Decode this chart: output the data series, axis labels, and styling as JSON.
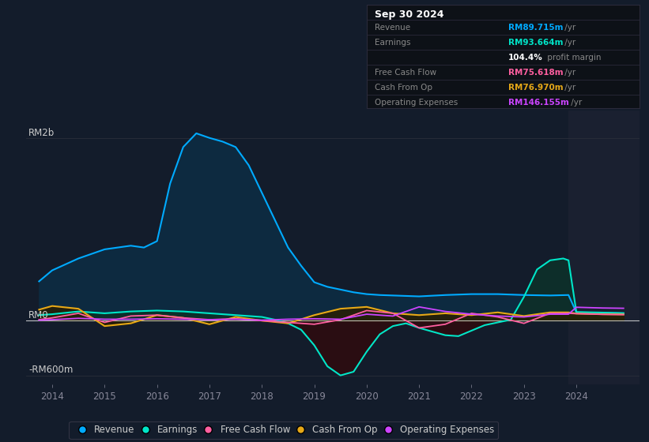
{
  "bg_color": "#131c2b",
  "plot_bg_color": "#131c2b",
  "info_box_bg": "#0d1117",
  "info_box_border": "#2a2a3a",
  "x_ticks": [
    2014,
    2015,
    2016,
    2017,
    2018,
    2019,
    2020,
    2021,
    2022,
    2023,
    2024
  ],
  "ylim": [
    -700,
    2300
  ],
  "xlim": [
    2013.5,
    2025.2
  ],
  "shaded_right_x": 2023.85,
  "revenue_x": [
    2013.75,
    2014.0,
    2014.5,
    2015.0,
    2015.5,
    2015.75,
    2016.0,
    2016.25,
    2016.5,
    2016.75,
    2017.0,
    2017.25,
    2017.5,
    2017.75,
    2018.0,
    2018.25,
    2018.5,
    2018.75,
    2019.0,
    2019.25,
    2019.5,
    2019.75,
    2020.0,
    2020.25,
    2020.5,
    2020.75,
    2021.0,
    2021.5,
    2022.0,
    2022.5,
    2023.0,
    2023.5,
    2023.85,
    2024.0,
    2024.5,
    2024.9
  ],
  "revenue_y": [
    430,
    550,
    680,
    780,
    820,
    800,
    870,
    1500,
    1900,
    2050,
    2000,
    1960,
    1900,
    1700,
    1400,
    1100,
    800,
    600,
    420,
    370,
    340,
    310,
    290,
    280,
    275,
    270,
    265,
    280,
    290,
    290,
    280,
    275,
    280,
    90,
    85,
    80
  ],
  "earnings_x": [
    2013.75,
    2014.0,
    2014.5,
    2015.0,
    2015.5,
    2016.0,
    2016.5,
    2017.0,
    2017.5,
    2018.0,
    2018.25,
    2018.5,
    2018.75,
    2019.0,
    2019.25,
    2019.5,
    2019.75,
    2020.0,
    2020.25,
    2020.5,
    2020.75,
    2021.0,
    2021.25,
    2021.5,
    2021.75,
    2022.0,
    2022.25,
    2022.5,
    2022.75,
    2023.0,
    2023.25,
    2023.5,
    2023.75,
    2023.85,
    2024.0,
    2024.5,
    2024.9
  ],
  "earnings_y": [
    60,
    70,
    100,
    80,
    100,
    110,
    100,
    80,
    60,
    40,
    10,
    -30,
    -100,
    -270,
    -500,
    -600,
    -560,
    -340,
    -150,
    -60,
    -30,
    -80,
    -120,
    -160,
    -170,
    -110,
    -50,
    -20,
    10,
    260,
    560,
    660,
    680,
    660,
    94,
    88,
    82
  ],
  "fcf_x": [
    2013.75,
    2014.0,
    2014.5,
    2015.0,
    2015.5,
    2016.0,
    2016.5,
    2017.0,
    2017.5,
    2018.0,
    2018.5,
    2019.0,
    2019.5,
    2020.0,
    2020.5,
    2021.0,
    2021.5,
    2022.0,
    2022.5,
    2023.0,
    2023.5,
    2023.85,
    2024.0,
    2024.5,
    2024.9
  ],
  "fcf_y": [
    10,
    30,
    80,
    -20,
    50,
    60,
    30,
    10,
    20,
    0,
    -20,
    -40,
    10,
    110,
    80,
    -80,
    -40,
    80,
    40,
    -30,
    80,
    80,
    76,
    68,
    65
  ],
  "cop_x": [
    2013.75,
    2014.0,
    2014.5,
    2015.0,
    2015.5,
    2016.0,
    2016.5,
    2017.0,
    2017.5,
    2018.0,
    2018.5,
    2019.0,
    2019.5,
    2020.0,
    2020.5,
    2021.0,
    2021.5,
    2022.0,
    2022.5,
    2023.0,
    2023.5,
    2023.85,
    2024.0,
    2024.5,
    2024.9
  ],
  "cop_y": [
    120,
    160,
    130,
    -60,
    -30,
    60,
    30,
    -40,
    40,
    0,
    -30,
    60,
    130,
    150,
    80,
    60,
    80,
    60,
    90,
    50,
    90,
    90,
    77,
    70,
    68
  ],
  "opex_x": [
    2013.75,
    2014.0,
    2014.5,
    2015.0,
    2015.5,
    2016.0,
    2016.5,
    2017.0,
    2017.5,
    2018.0,
    2018.5,
    2019.0,
    2019.5,
    2020.0,
    2020.5,
    2021.0,
    2021.5,
    2022.0,
    2022.5,
    2023.0,
    2023.5,
    2023.85,
    2024.0,
    2024.5,
    2024.9
  ],
  "opex_y": [
    5,
    10,
    25,
    15,
    15,
    20,
    15,
    10,
    15,
    5,
    15,
    20,
    15,
    70,
    50,
    150,
    100,
    70,
    50,
    40,
    70,
    70,
    146,
    138,
    135
  ],
  "rev_color": "#00aaff",
  "rev_fill": "#0d2a40",
  "earn_color": "#00e5c8",
  "earn_pos_fill": "#0d2e2a",
  "earn_neg_fill": "#2a0d12",
  "fcf_color": "#ff5fa0",
  "cop_color": "#e6a817",
  "cop_fill": "#2a1e00",
  "opex_color": "#cc44ff",
  "zero_line_color": "#ffffff",
  "grid_color": "#2a2e3a",
  "shaded_color": "#1a2030",
  "legend": [
    {
      "label": "Revenue",
      "color": "#00aaff"
    },
    {
      "label": "Earnings",
      "color": "#00e5c8"
    },
    {
      "label": "Free Cash Flow",
      "color": "#ff5fa0"
    },
    {
      "label": "Cash From Op",
      "color": "#e6a817"
    },
    {
      "label": "Operating Expenses",
      "color": "#cc44ff"
    }
  ],
  "info_date": "Sep 30 2024",
  "info_rows": [
    {
      "label": "Revenue",
      "value": "RM89.715m",
      "vcolor": "#00aaff",
      "suffix": " /yr"
    },
    {
      "label": "Earnings",
      "value": "RM93.664m",
      "vcolor": "#00e5c8",
      "suffix": " /yr"
    },
    {
      "label": "",
      "value": "104.4%",
      "vcolor": "#ffffff",
      "suffix": " profit margin"
    },
    {
      "label": "Free Cash Flow",
      "value": "RM75.618m",
      "vcolor": "#ff5fa0",
      "suffix": " /yr"
    },
    {
      "label": "Cash From Op",
      "value": "RM76.970m",
      "vcolor": "#e6a817",
      "suffix": " /yr"
    },
    {
      "label": "Operating Expenses",
      "value": "RM146.155m",
      "vcolor": "#cc44ff",
      "suffix": " /yr"
    }
  ]
}
